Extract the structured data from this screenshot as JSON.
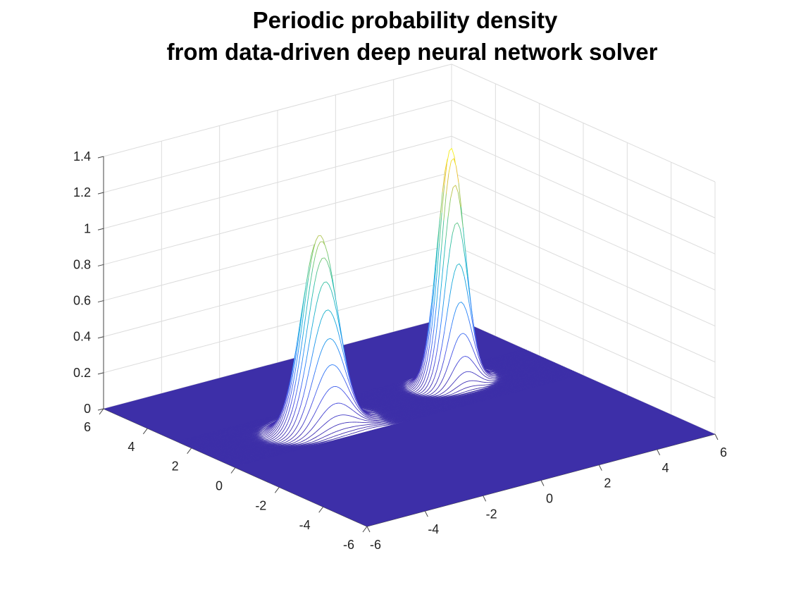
{
  "chart_data": {
    "type": "surface",
    "title": [
      "Periodic probability density",
      "from data-driven deep neural network solver"
    ],
    "xlabel": "",
    "ylabel": "",
    "zlabel": "",
    "x_range": [
      -6,
      6
    ],
    "y_range": [
      -6,
      6
    ],
    "z_range": [
      0,
      1.4
    ],
    "x_ticks": [
      "-6",
      "-4",
      "-2",
      "0",
      "2",
      "4",
      "6"
    ],
    "y_ticks": [
      "-6",
      "-4",
      "-2",
      "0",
      "2",
      "4",
      "6"
    ],
    "z_ticks": [
      "0",
      "0.2",
      "0.4",
      "0.6",
      "0.8",
      "1",
      "1.2",
      "1.4"
    ],
    "grid": true,
    "colormap": "parula",
    "background_plane_color": "#3d2fa8",
    "peaks": [
      {
        "x": -2.2,
        "y": 1.2,
        "height": 1.05,
        "sigma_x": 0.55,
        "sigma_y": 0.35,
        "tail_dir": [
          1.6,
          -1.4
        ],
        "tail_len": 2.0
      },
      {
        "x": 2.8,
        "y": 1.8,
        "height": 1.3,
        "sigma_x": 0.4,
        "sigma_y": 0.3,
        "tail_dir": [
          0.0,
          0.0
        ],
        "tail_len": 0.0
      }
    ]
  }
}
